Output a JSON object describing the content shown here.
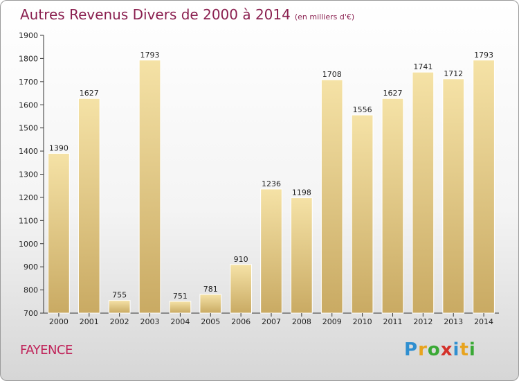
{
  "header": {
    "title": "Autres Revenus Divers de 2000 à 2014",
    "subtitle": "(en milliers d'€)"
  },
  "footer": {
    "town": "FAYENCE",
    "logo_letters": [
      "P",
      "r",
      "o",
      "x",
      "i",
      "t",
      "i"
    ],
    "logo_colors": [
      "#2f8fd0",
      "#e8a31d",
      "#3aa935",
      "#d4312a",
      "#2f8fd0",
      "#e8a31d",
      "#3aa935"
    ]
  },
  "colors": {
    "bar_light": "#f5e2a6",
    "bar_dark": "#c9aa63",
    "bar_border": "#ffffff",
    "title": "#8a1f4f",
    "town": "#c0245a"
  },
  "chart_data": {
    "type": "bar",
    "title": "Autres Revenus Divers de 2000 à 2014",
    "subtitle": "(en milliers d'€)",
    "xlabel": "",
    "ylabel": "",
    "categories": [
      "2000",
      "2001",
      "2002",
      "2003",
      "2004",
      "2005",
      "2006",
      "2007",
      "2008",
      "2009",
      "2010",
      "2011",
      "2012",
      "2013",
      "2014"
    ],
    "values": [
      1390,
      1627,
      755,
      1793,
      751,
      781,
      910,
      1236,
      1198,
      1708,
      1556,
      1627,
      1741,
      1712,
      1793
    ],
    "ylim": [
      700,
      1900
    ],
    "yticks": [
      700,
      800,
      900,
      1000,
      1100,
      1200,
      1300,
      1400,
      1500,
      1600,
      1700,
      1800,
      1900
    ],
    "grid": false,
    "legend": "none"
  }
}
